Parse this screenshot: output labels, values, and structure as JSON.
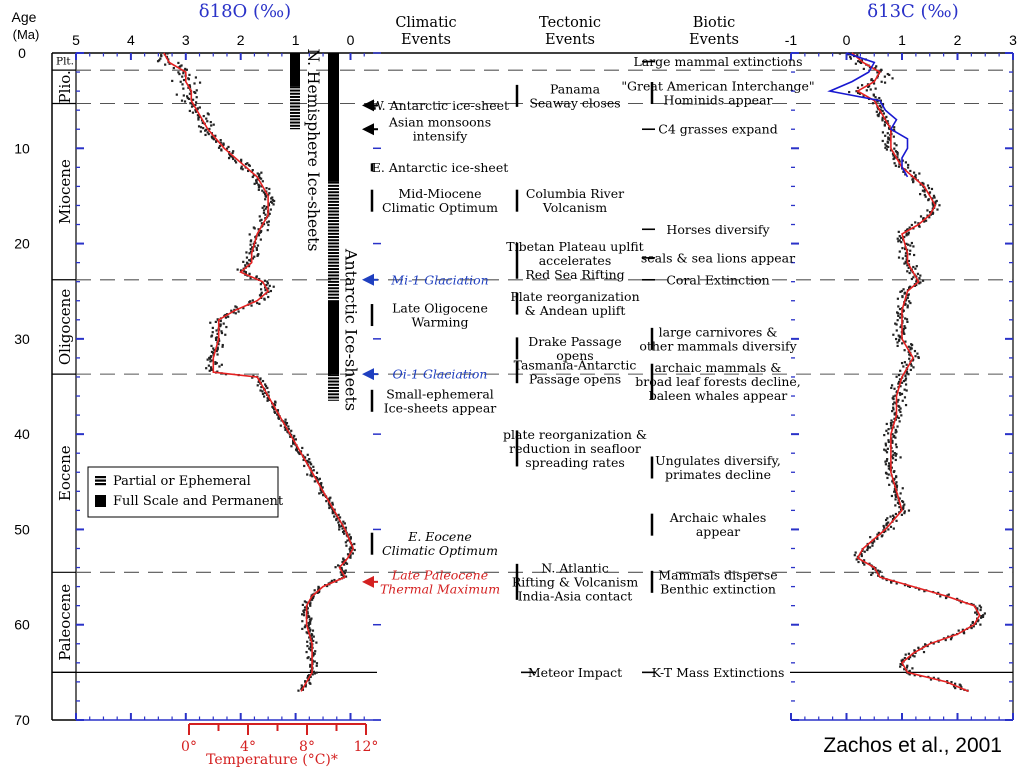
{
  "chart_data": {
    "type": "scatter",
    "y_axis": {
      "title": "Age",
      "unit": "(Ma)",
      "range": [
        0,
        70
      ],
      "ticks": [
        0,
        10,
        20,
        30,
        40,
        50,
        60,
        70
      ]
    },
    "o18_axis": {
      "title": "δ18O (‰)",
      "range": [
        5,
        -0.5
      ],
      "ticks": [
        5,
        4,
        3,
        2,
        1,
        0
      ]
    },
    "c13_axis": {
      "title": "δ13C (‰)",
      "range": [
        -1,
        3
      ],
      "ticks": [
        -1,
        0,
        1,
        2,
        3
      ]
    },
    "temp_axis": {
      "title": "Temperature (°C)*",
      "ticks": [
        "0°",
        "4°",
        "8°",
        "12°"
      ],
      "values": [
        0,
        4,
        8,
        12
      ]
    },
    "column_headers": [
      {
        "id": "climatic",
        "lines": [
          "Climatic",
          "Events"
        ]
      },
      {
        "id": "tectonic",
        "lines": [
          "Tectonic",
          "Events"
        ]
      },
      {
        "id": "biotic",
        "lines": [
          "Biotic",
          "Events"
        ]
      }
    ],
    "epochs": [
      {
        "name": "Plt.",
        "start": 0,
        "end": 1.8
      },
      {
        "name": "Plio.",
        "start": 1.8,
        "end": 5.3
      },
      {
        "name": "Miocene",
        "start": 5.3,
        "end": 23.8
      },
      {
        "name": "Oligocene",
        "start": 23.8,
        "end": 33.7
      },
      {
        "name": "Eocene",
        "start": 33.7,
        "end": 54.5
      },
      {
        "name": "Paleocene",
        "start": 54.5,
        "end": 65.0
      }
    ],
    "ice_sheets": {
      "north_label": "N. Hemisphere Ice-sheets",
      "antarctic_label": "Antarctic Ice-sheets",
      "legend": [
        {
          "label": "Partial or Ephemeral",
          "style": "dashed"
        },
        {
          "label": "Full Scale and Permanent",
          "style": "solid"
        }
      ],
      "north": [
        {
          "start": 0,
          "end": 3.5,
          "style": "solid"
        },
        {
          "start": 3.5,
          "end": 8,
          "style": "dashed"
        }
      ],
      "antarctic": [
        {
          "start": 0,
          "end": 13.5,
          "style": "solid"
        },
        {
          "start": 13.5,
          "end": 26,
          "style": "dashed"
        },
        {
          "start": 26,
          "end": 33.7,
          "style": "solid"
        },
        {
          "start": 33.7,
          "end": 36.5,
          "style": "dashed"
        }
      ]
    },
    "climatic_events": [
      {
        "lines": [
          "W. Antarctic ice-sheet"
        ],
        "age": 5.5,
        "arrow": true,
        "color": "#000000",
        "italic": false
      },
      {
        "lines": [
          "Asian monsoons",
          "intensify"
        ],
        "age": 8,
        "arrow": true,
        "color": "#000000",
        "italic": false
      },
      {
        "lines": [
          "E. Antarctic ice-sheet"
        ],
        "age": 12,
        "arrow": false,
        "color": "#000000",
        "italic": false
      },
      {
        "lines": [
          "Mid-Miocene",
          "Climatic Optimum"
        ],
        "age": 15.5,
        "arrow": false,
        "color": "#000000",
        "italic": false
      },
      {
        "lines": [
          "Mi-1 Glaciation"
        ],
        "age": 23.8,
        "arrow": true,
        "color": "#1f3fbf",
        "italic": true
      },
      {
        "lines": [
          "Late Oligocene",
          "Warming"
        ],
        "age": 27.5,
        "arrow": false,
        "color": "#000000",
        "italic": false
      },
      {
        "lines": [
          "Oi-1 Glaciation"
        ],
        "age": 33.7,
        "arrow": true,
        "color": "#1f3fbf",
        "italic": true
      },
      {
        "lines": [
          "Small-ephemeral",
          "Ice-sheets appear"
        ],
        "age": 36.5,
        "arrow": false,
        "color": "#000000",
        "italic": false
      },
      {
        "lines": [
          "E. Eocene",
          "Climatic Optimum"
        ],
        "age": 51.5,
        "arrow": false,
        "color": "#000000",
        "italic": true
      },
      {
        "lines": [
          "Late Paleocene",
          "Thermal Maximum"
        ],
        "age": 55.5,
        "arrow": true,
        "color": "#d42020",
        "italic": true
      }
    ],
    "tectonic_events": [
      {
        "lines": [
          "Panama",
          "Seaway closes"
        ],
        "age": 4.5
      },
      {
        "lines": [
          "Columbia River",
          "Volcanism"
        ],
        "age": 15.5
      },
      {
        "lines": [
          "Tibetan Plateau uplfit",
          "accelerates",
          "Red Sea Rifting"
        ],
        "age": 21.8
      },
      {
        "lines": [
          "Plate reorganization",
          "& Andean uplift"
        ],
        "age": 26.3
      },
      {
        "lines": [
          "Drake Passage",
          "opens"
        ],
        "age": 31
      },
      {
        "lines": [
          "Tasmania-Antarctic",
          "Passage opens"
        ],
        "age": 33.5
      },
      {
        "lines": [
          "plate reorganization &",
          "reduction in seafloor",
          "spreading rates"
        ],
        "age": 41.5
      },
      {
        "lines": [
          "N. Atlantic",
          "Rifting & Volcanism",
          "India-Asia contact"
        ],
        "age": 55.5
      },
      {
        "lines": [
          "Meteor Impact"
        ],
        "age": 65
      }
    ],
    "biotic_events": [
      {
        "lines": [
          "Large mammal extinctions"
        ],
        "age": 0.9
      },
      {
        "lines": [
          "\"Great American Interchange\"",
          "Hominids appear"
        ],
        "age": 4.2
      },
      {
        "lines": [
          "C4 grasses expand"
        ],
        "age": 8
      },
      {
        "lines": [
          "Horses diversify"
        ],
        "age": 18.5
      },
      {
        "lines": [
          "seals & sea lions appear"
        ],
        "age": 21.5
      },
      {
        "lines": [
          "Coral Extinction"
        ],
        "age": 23.8
      },
      {
        "lines": [
          "large carnivores &",
          "other mammals diversify"
        ],
        "age": 30
      },
      {
        "lines": [
          "archaic mammals &",
          "broad leaf forests decline,",
          "baleen whales appear"
        ],
        "age": 34.5
      },
      {
        "lines": [
          "Ungulates diversify,",
          "primates decline"
        ],
        "age": 43.5
      },
      {
        "lines": [
          "Archaic whales",
          "appear"
        ],
        "age": 49.5
      },
      {
        "lines": [
          "Mammals disperse",
          "Benthic extinction"
        ],
        "age": 55.5
      },
      {
        "lines": [
          "K-T Mass Extinctions"
        ],
        "age": 65
      }
    ],
    "boundaries": [
      {
        "age": 1.8,
        "style": "dashed"
      },
      {
        "age": 5.3,
        "style": "dashed"
      },
      {
        "age": 23.8,
        "style": "dashed"
      },
      {
        "age": 33.7,
        "style": "dashed"
      },
      {
        "age": 54.5,
        "style": "dashed"
      },
      {
        "age": 65.0,
        "style": "solid"
      }
    ],
    "o18_curve": [
      [
        0,
        3.4
      ],
      [
        1,
        3.3
      ],
      [
        2,
        3.0
      ],
      [
        3,
        3.0
      ],
      [
        4,
        2.9
      ],
      [
        5,
        2.9
      ],
      [
        6,
        2.8
      ],
      [
        8,
        2.6
      ],
      [
        10,
        2.3
      ],
      [
        12,
        1.9
      ],
      [
        13,
        1.7
      ],
      [
        14,
        1.6
      ],
      [
        15,
        1.5
      ],
      [
        16,
        1.5
      ],
      [
        17,
        1.5
      ],
      [
        19,
        1.7
      ],
      [
        21,
        1.8
      ],
      [
        22,
        1.8
      ],
      [
        23,
        2.0
      ],
      [
        24,
        1.6
      ],
      [
        25,
        1.5
      ],
      [
        26,
        1.7
      ],
      [
        27,
        2.1
      ],
      [
        28,
        2.4
      ],
      [
        30,
        2.4
      ],
      [
        32,
        2.5
      ],
      [
        33.5,
        2.5
      ],
      [
        34,
        1.7
      ],
      [
        35,
        1.6
      ],
      [
        36,
        1.5
      ],
      [
        38,
        1.3
      ],
      [
        40,
        1.1
      ],
      [
        42,
        0.9
      ],
      [
        44,
        0.7
      ],
      [
        46,
        0.5
      ],
      [
        48,
        0.3
      ],
      [
        50,
        0.1
      ],
      [
        52,
        -0.05
      ],
      [
        53,
        0.05
      ],
      [
        54,
        0.2
      ],
      [
        55,
        0.1
      ],
      [
        56,
        0.5
      ],
      [
        57,
        0.7
      ],
      [
        58,
        0.8
      ],
      [
        60,
        0.8
      ],
      [
        62,
        0.7
      ],
      [
        64,
        0.7
      ],
      [
        65,
        0.7
      ],
      [
        66,
        0.8
      ],
      [
        67,
        0.9
      ]
    ],
    "c13_curve": [
      [
        0,
        0.1
      ],
      [
        1,
        0.3
      ],
      [
        2,
        0.6
      ],
      [
        3,
        0.5
      ],
      [
        4,
        0.2
      ],
      [
        5,
        0.5
      ],
      [
        6,
        0.6
      ],
      [
        8,
        0.8
      ],
      [
        10,
        0.8
      ],
      [
        12,
        1.0
      ],
      [
        14,
        1.4
      ],
      [
        15,
        1.5
      ],
      [
        16,
        1.6
      ],
      [
        17,
        1.5
      ],
      [
        18,
        1.3
      ],
      [
        19,
        1.0
      ],
      [
        21,
        1.1
      ],
      [
        22,
        1.1
      ],
      [
        23,
        1.2
      ],
      [
        24,
        1.3
      ],
      [
        25,
        1.1
      ],
      [
        27,
        1.0
      ],
      [
        30,
        1.0
      ],
      [
        32,
        1.2
      ],
      [
        34,
        1.0
      ],
      [
        36,
        0.9
      ],
      [
        38,
        0.9
      ],
      [
        40,
        0.8
      ],
      [
        42,
        0.8
      ],
      [
        44,
        0.8
      ],
      [
        46,
        0.9
      ],
      [
        48,
        1.0
      ],
      [
        50,
        0.7
      ],
      [
        52,
        0.3
      ],
      [
        53,
        0.2
      ],
      [
        54,
        0.5
      ],
      [
        55,
        0.6
      ],
      [
        56,
        1.2
      ],
      [
        57,
        1.8
      ],
      [
        58,
        2.3
      ],
      [
        59,
        2.4
      ],
      [
        60,
        2.3
      ],
      [
        61,
        2.0
      ],
      [
        62,
        1.5
      ],
      [
        63,
        1.2
      ],
      [
        64,
        1.0
      ],
      [
        65,
        1.1
      ],
      [
        66,
        1.8
      ],
      [
        67,
        2.2
      ]
    ],
    "c13_pacific_curve": [
      [
        0,
        0.0
      ],
      [
        1,
        0.5
      ],
      [
        2,
        0.4
      ],
      [
        3,
        0.1
      ],
      [
        4,
        -0.3
      ],
      [
        5,
        0.6
      ],
      [
        6,
        0.7
      ],
      [
        7,
        0.9
      ],
      [
        8,
        0.8
      ],
      [
        9,
        1.1
      ],
      [
        10,
        1.1
      ],
      [
        11,
        1.0
      ],
      [
        12,
        1.0
      ],
      [
        13,
        1.1
      ]
    ],
    "colors": {
      "o18_axis": "#2a32c8",
      "c13_axis": "#2a32c8",
      "temperature": "#d42020",
      "smoothed_curve": "#e52222",
      "pacific_curve": "#1818d0",
      "data_points": "#222222"
    }
  },
  "credit": "Zachos et al., 2001"
}
